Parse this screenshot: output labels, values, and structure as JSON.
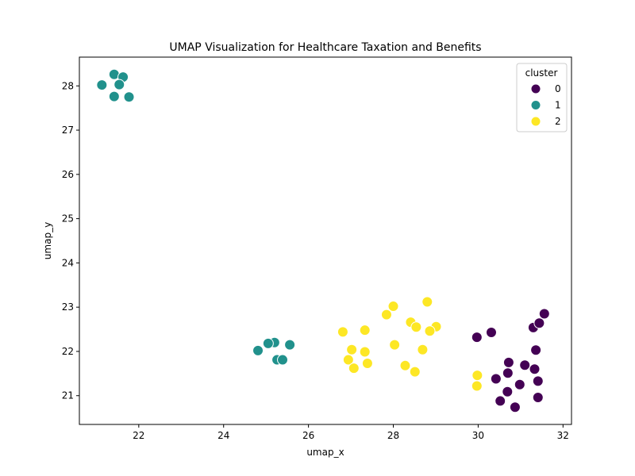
{
  "chart_data": {
    "type": "scatter",
    "title": "UMAP Visualization for Healthcare Taxation and Benefits",
    "xlabel": "umap_x",
    "ylabel": "umap_y",
    "xlim": [
      20.6,
      32.2
    ],
    "ylim": [
      20.35,
      28.65
    ],
    "xticks": [
      22,
      24,
      26,
      28,
      30,
      32
    ],
    "yticks": [
      21,
      22,
      23,
      24,
      25,
      26,
      27,
      28
    ],
    "grid": false,
    "legend": {
      "title": "cluster",
      "placement": "top-right"
    },
    "series": [
      {
        "name": "0",
        "color": "#440154",
        "points": [
          [
            29.97,
            22.32
          ],
          [
            30.31,
            22.43
          ],
          [
            31.3,
            22.54
          ],
          [
            31.44,
            22.64
          ],
          [
            31.56,
            22.85
          ],
          [
            31.36,
            22.03
          ],
          [
            30.72,
            21.75
          ],
          [
            31.1,
            21.69
          ],
          [
            31.33,
            21.6
          ],
          [
            30.7,
            21.51
          ],
          [
            30.42,
            21.38
          ],
          [
            31.41,
            21.33
          ],
          [
            30.98,
            21.25
          ],
          [
            30.69,
            21.09
          ],
          [
            31.41,
            20.96
          ],
          [
            30.52,
            20.88
          ],
          [
            30.87,
            20.74
          ]
        ]
      },
      {
        "name": "1",
        "color": "#21918c",
        "points": [
          [
            21.42,
            28.26
          ],
          [
            21.63,
            28.2
          ],
          [
            21.13,
            28.02
          ],
          [
            21.54,
            28.03
          ],
          [
            21.42,
            27.76
          ],
          [
            21.77,
            27.75
          ],
          [
            25.2,
            22.2
          ],
          [
            25.05,
            22.18
          ],
          [
            25.56,
            22.15
          ],
          [
            24.81,
            22.02
          ],
          [
            25.26,
            21.81
          ],
          [
            25.39,
            21.81
          ]
        ]
      },
      {
        "name": "2",
        "color": "#fde725",
        "points": [
          [
            28.8,
            23.12
          ],
          [
            28.0,
            23.02
          ],
          [
            27.84,
            22.83
          ],
          [
            28.41,
            22.66
          ],
          [
            28.54,
            22.55
          ],
          [
            29.01,
            22.56
          ],
          [
            28.86,
            22.46
          ],
          [
            26.81,
            22.44
          ],
          [
            27.33,
            22.48
          ],
          [
            28.03,
            22.15
          ],
          [
            27.02,
            22.04
          ],
          [
            28.69,
            22.04
          ],
          [
            27.33,
            21.99
          ],
          [
            26.94,
            21.81
          ],
          [
            27.39,
            21.73
          ],
          [
            28.28,
            21.68
          ],
          [
            27.07,
            21.62
          ],
          [
            28.51,
            21.54
          ],
          [
            29.98,
            21.46
          ],
          [
            29.97,
            21.22
          ]
        ]
      }
    ]
  }
}
